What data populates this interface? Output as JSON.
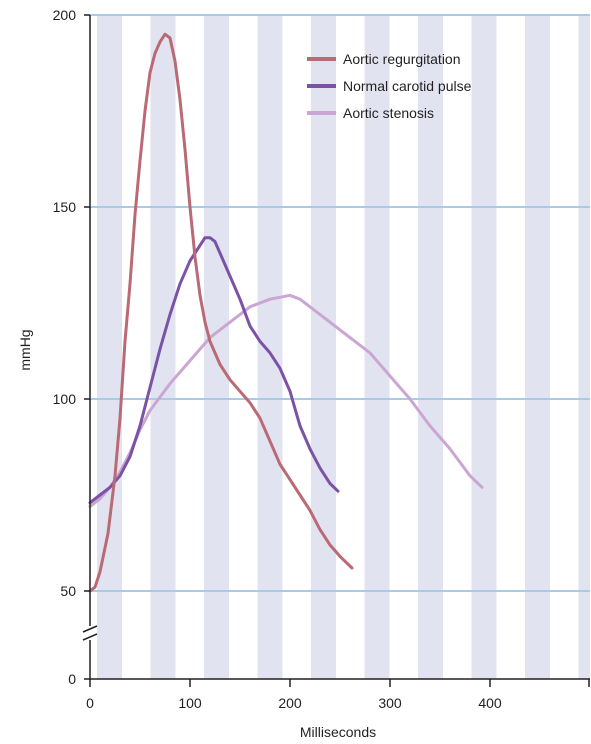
{
  "chart_data": {
    "type": "line",
    "xlabel": "Milliseconds",
    "ylabel": "mmHg",
    "xlim": [
      0,
      500
    ],
    "ylim_upper": [
      50,
      200
    ],
    "y_break": "axis break between 0 and 50",
    "xticks": [
      0,
      100,
      200,
      300,
      400
    ],
    "yticks": [
      0,
      50,
      100,
      150,
      200
    ],
    "grid": "horizontal lines at 50, 100, 150, 200; alternating vertical shaded bands",
    "legend_placement": "top-right",
    "colors": {
      "band": "#e1e4f0",
      "gridline": "#a9cbe8",
      "axis": "#231f20"
    },
    "series": [
      {
        "name": "Aortic regurgitation",
        "color": "#b96a74",
        "points": [
          [
            0,
            50
          ],
          [
            5,
            51
          ],
          [
            10,
            55
          ],
          [
            18,
            65
          ],
          [
            25,
            80
          ],
          [
            30,
            95
          ],
          [
            35,
            115
          ],
          [
            40,
            130
          ],
          [
            45,
            148
          ],
          [
            50,
            162
          ],
          [
            55,
            175
          ],
          [
            60,
            185
          ],
          [
            65,
            190
          ],
          [
            70,
            193
          ],
          [
            75,
            195
          ],
          [
            80,
            194
          ],
          [
            85,
            188
          ],
          [
            90,
            178
          ],
          [
            95,
            165
          ],
          [
            100,
            150
          ],
          [
            105,
            137
          ],
          [
            110,
            127
          ],
          [
            115,
            120
          ],
          [
            120,
            115
          ],
          [
            130,
            109
          ],
          [
            140,
            105
          ],
          [
            150,
            102
          ],
          [
            160,
            99
          ],
          [
            170,
            95
          ],
          [
            180,
            89
          ],
          [
            190,
            83
          ],
          [
            200,
            79
          ],
          [
            210,
            75
          ],
          [
            220,
            71
          ],
          [
            230,
            66
          ],
          [
            240,
            62
          ],
          [
            250,
            59
          ],
          [
            262,
            56
          ]
        ]
      },
      {
        "name": "Normal carotid pulse",
        "color": "#7c52a6",
        "points": [
          [
            0,
            73
          ],
          [
            10,
            75
          ],
          [
            20,
            77
          ],
          [
            30,
            80
          ],
          [
            40,
            85
          ],
          [
            50,
            93
          ],
          [
            60,
            103
          ],
          [
            70,
            113
          ],
          [
            80,
            122
          ],
          [
            90,
            130
          ],
          [
            100,
            136
          ],
          [
            110,
            140
          ],
          [
            115,
            142
          ],
          [
            120,
            142
          ],
          [
            125,
            141
          ],
          [
            130,
            138
          ],
          [
            140,
            132
          ],
          [
            150,
            126
          ],
          [
            160,
            119
          ],
          [
            170,
            115
          ],
          [
            180,
            112
          ],
          [
            190,
            108
          ],
          [
            200,
            102
          ],
          [
            210,
            93
          ],
          [
            220,
            87
          ],
          [
            230,
            82
          ],
          [
            240,
            78
          ],
          [
            248,
            76
          ]
        ]
      },
      {
        "name": "Aortic stenosis",
        "color": "#caa6d2",
        "points": [
          [
            0,
            72
          ],
          [
            10,
            74
          ],
          [
            20,
            77
          ],
          [
            30,
            81
          ],
          [
            40,
            86
          ],
          [
            50,
            92
          ],
          [
            60,
            97
          ],
          [
            80,
            104
          ],
          [
            100,
            110
          ],
          [
            120,
            116
          ],
          [
            140,
            120
          ],
          [
            160,
            124
          ],
          [
            180,
            126
          ],
          [
            200,
            127
          ],
          [
            210,
            126
          ],
          [
            220,
            124
          ],
          [
            240,
            120
          ],
          [
            260,
            116
          ],
          [
            280,
            112
          ],
          [
            300,
            106
          ],
          [
            320,
            100
          ],
          [
            340,
            93
          ],
          [
            360,
            87
          ],
          [
            380,
            80
          ],
          [
            392,
            77
          ]
        ]
      }
    ]
  }
}
